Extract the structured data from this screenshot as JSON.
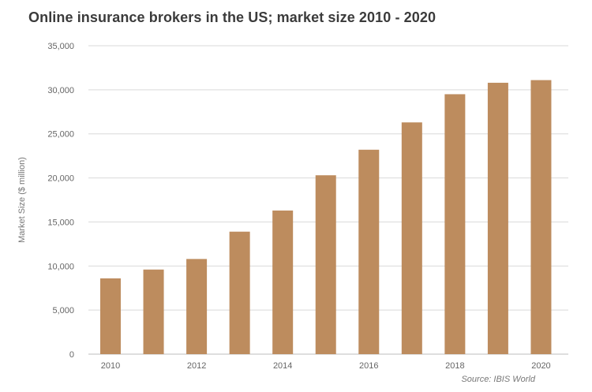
{
  "title": "Online insurance brokers in the US; market size 2010 - 2020",
  "source": "Source: IBIS World",
  "colors": {
    "bar": "#bd8c5e"
  },
  "chart_data": {
    "type": "bar",
    "title": "Online insurance brokers in the US; market size 2010 - 2020",
    "xlabel": "",
    "ylabel": "Market Size ($ million)",
    "categories": [
      "2010",
      "2011",
      "2012",
      "2013",
      "2014",
      "2015",
      "2016",
      "2017",
      "2018",
      "2019",
      "2020"
    ],
    "x_tick_labels": [
      "2010",
      "",
      "2012",
      "",
      "2014",
      "",
      "2016",
      "",
      "2018",
      "",
      "2020"
    ],
    "values": [
      8600,
      9600,
      10800,
      13900,
      16300,
      20300,
      23200,
      26300,
      29500,
      30800,
      31100
    ],
    "ylim": [
      0,
      35000
    ],
    "y_ticks": [
      0,
      5000,
      10000,
      15000,
      20000,
      25000,
      30000,
      35000
    ],
    "y_tick_labels": [
      "0",
      "5,000",
      "10,000",
      "15,000",
      "20,000",
      "25,000",
      "30,000",
      "35,000"
    ],
    "grid": true,
    "legend": "none"
  }
}
